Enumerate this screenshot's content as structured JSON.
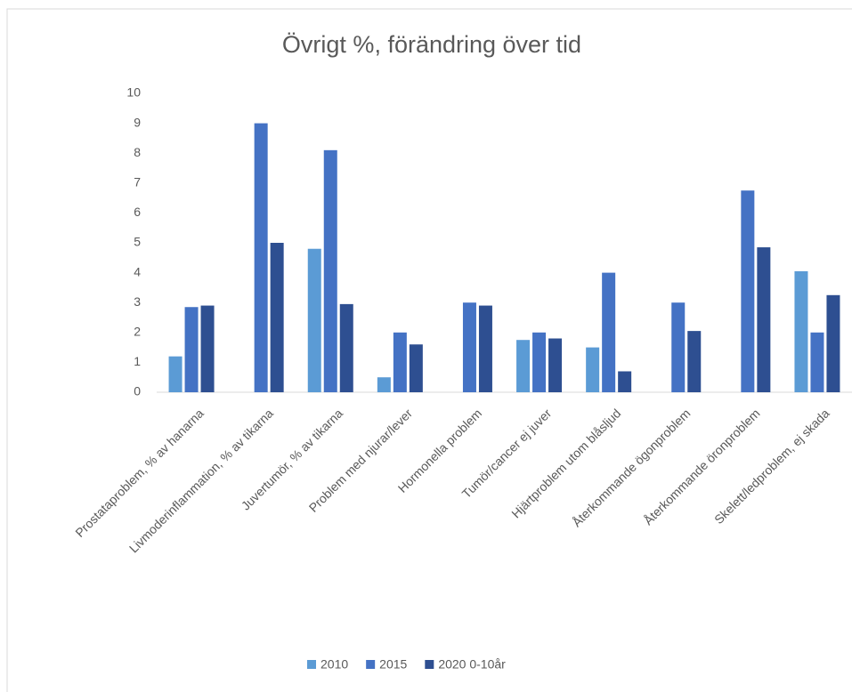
{
  "chart_data": {
    "type": "bar",
    "title": "Övrigt %, förändring över tid",
    "categories": [
      "Prostataproblem, % av hanarna",
      "Livmoderinflammation, % av tikarna",
      "Juvertumör, % av tikarna",
      "Problem med njurar/lever",
      "Hormonella problem",
      "Tumör/cancer ej juver",
      "Hjärtproblem utom blåsljud",
      "Återkommande ögonproblem",
      "Återkommande öronproblem",
      "Skelett/ledproblem, ej skada"
    ],
    "series": [
      {
        "name": "2010",
        "color": "#5b9bd5",
        "values": [
          1.2,
          null,
          4.8,
          0.5,
          null,
          1.75,
          1.5,
          null,
          null,
          4.05
        ]
      },
      {
        "name": "2015",
        "color": "#4472c4",
        "values": [
          2.85,
          9.0,
          8.1,
          2.0,
          3.0,
          2.0,
          4.0,
          3.0,
          6.75,
          2.0
        ]
      },
      {
        "name": "2020 0-10år",
        "color": "#2e4f91",
        "values": [
          2.9,
          5.0,
          2.95,
          1.6,
          2.9,
          1.8,
          0.7,
          2.05,
          4.85,
          3.25
        ]
      }
    ],
    "ylim": [
      0,
      10
    ],
    "yticks": [
      0,
      1,
      2,
      3,
      4,
      5,
      6,
      7,
      8,
      9,
      10
    ],
    "grid": false,
    "legend": "bottom"
  }
}
